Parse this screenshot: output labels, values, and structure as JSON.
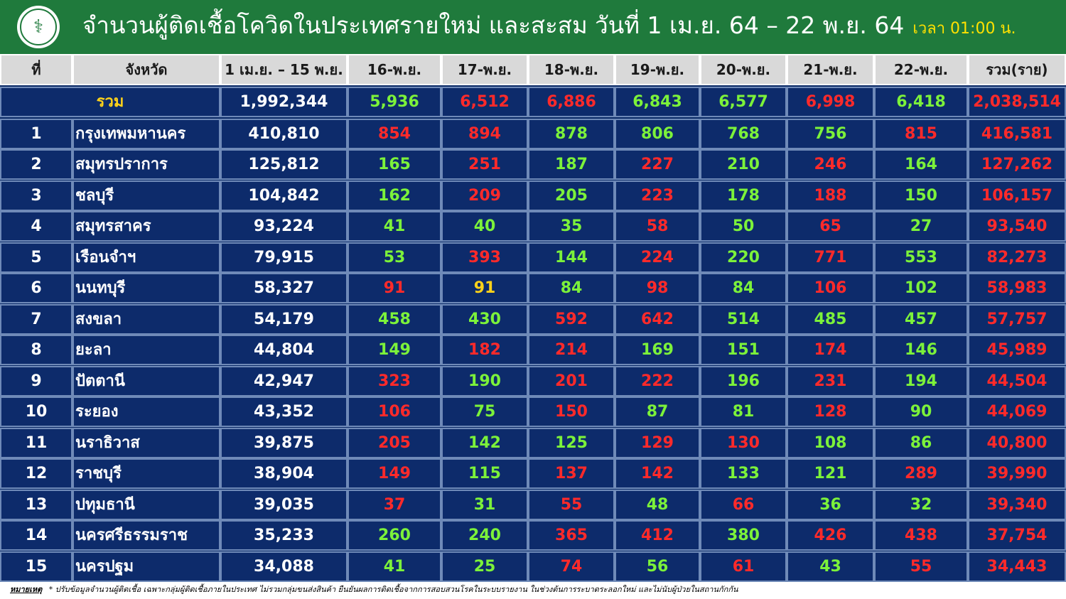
{
  "header": {
    "title": "จำนวนผู้ติดเชื้อโควิดในประเทศรายใหม่ และสะสม วันที่ 1 เม.ย. 64 – 22 พ.ย. 64",
    "time": "เวลา 01:00 น.",
    "logo": "ministry-of-public-health-seal"
  },
  "table": {
    "headers": [
      "ที่",
      "จังหวัด",
      "1 เม.ย. – 15 พ.ย.",
      "16-พ.ย.",
      "17-พ.ย.",
      "18-พ.ย.",
      "19-พ.ย.",
      "20-พ.ย.",
      "21-พ.ย.",
      "22-พ.ย.",
      "รวม(ราย)"
    ],
    "total": {
      "label": "รวม",
      "values": [
        "1,992,344",
        "5,936",
        "6,512",
        "6,886",
        "6,843",
        "6,577",
        "6,998",
        "6,418",
        "2,038,514"
      ],
      "colors": [
        "white",
        "green",
        "red",
        "red",
        "green",
        "green",
        "red",
        "green",
        "red"
      ]
    },
    "rows": [
      {
        "no": "1",
        "province": "กรุงเทพมหานคร",
        "values": [
          "410,810",
          "854",
          "894",
          "878",
          "806",
          "768",
          "756",
          "815",
          "416,581"
        ],
        "colors": [
          "white",
          "red",
          "red",
          "green",
          "green",
          "green",
          "green",
          "red",
          "red"
        ]
      },
      {
        "no": "2",
        "province": "สมุทรปราการ",
        "values": [
          "125,812",
          "165",
          "251",
          "187",
          "227",
          "210",
          "246",
          "164",
          "127,262"
        ],
        "colors": [
          "white",
          "green",
          "red",
          "green",
          "red",
          "green",
          "red",
          "green",
          "red"
        ]
      },
      {
        "no": "3",
        "province": "ชลบุรี",
        "values": [
          "104,842",
          "162",
          "209",
          "205",
          "223",
          "178",
          "188",
          "150",
          "106,157"
        ],
        "colors": [
          "white",
          "green",
          "red",
          "green",
          "red",
          "green",
          "red",
          "green",
          "red"
        ]
      },
      {
        "no": "4",
        "province": "สมุทรสาคร",
        "values": [
          "93,224",
          "41",
          "40",
          "35",
          "58",
          "50",
          "65",
          "27",
          "93,540"
        ],
        "colors": [
          "white",
          "green",
          "green",
          "green",
          "red",
          "green",
          "red",
          "green",
          "red"
        ]
      },
      {
        "no": "5",
        "province": "เรือนจำฯ",
        "values": [
          "79,915",
          "53",
          "393",
          "144",
          "224",
          "220",
          "771",
          "553",
          "82,273"
        ],
        "colors": [
          "white",
          "green",
          "red",
          "green",
          "red",
          "green",
          "red",
          "green",
          "red"
        ]
      },
      {
        "no": "6",
        "province": "นนทบุรี",
        "values": [
          "58,327",
          "91",
          "91",
          "84",
          "98",
          "84",
          "106",
          "102",
          "58,983"
        ],
        "colors": [
          "white",
          "red",
          "yellow",
          "green",
          "red",
          "green",
          "red",
          "green",
          "red"
        ]
      },
      {
        "no": "7",
        "province": "สงขลา",
        "values": [
          "54,179",
          "458",
          "430",
          "592",
          "642",
          "514",
          "485",
          "457",
          "57,757"
        ],
        "colors": [
          "white",
          "green",
          "green",
          "red",
          "red",
          "green",
          "green",
          "green",
          "red"
        ]
      },
      {
        "no": "8",
        "province": "ยะลา",
        "values": [
          "44,804",
          "149",
          "182",
          "214",
          "169",
          "151",
          "174",
          "146",
          "45,989"
        ],
        "colors": [
          "white",
          "green",
          "red",
          "red",
          "green",
          "green",
          "red",
          "green",
          "red"
        ]
      },
      {
        "no": "9",
        "province": "ปัตตานี",
        "values": [
          "42,947",
          "323",
          "190",
          "201",
          "222",
          "196",
          "231",
          "194",
          "44,504"
        ],
        "colors": [
          "white",
          "red",
          "green",
          "red",
          "red",
          "green",
          "red",
          "green",
          "red"
        ]
      },
      {
        "no": "10",
        "province": "ระยอง",
        "values": [
          "43,352",
          "106",
          "75",
          "150",
          "87",
          "81",
          "128",
          "90",
          "44,069"
        ],
        "colors": [
          "white",
          "red",
          "green",
          "red",
          "green",
          "green",
          "red",
          "green",
          "red"
        ]
      },
      {
        "no": "11",
        "province": "นราธิวาส",
        "values": [
          "39,875",
          "205",
          "142",
          "125",
          "129",
          "130",
          "108",
          "86",
          "40,800"
        ],
        "colors": [
          "white",
          "red",
          "green",
          "green",
          "red",
          "red",
          "green",
          "green",
          "red"
        ]
      },
      {
        "no": "12",
        "province": "ราชบุรี",
        "values": [
          "38,904",
          "149",
          "115",
          "137",
          "142",
          "133",
          "121",
          "289",
          "39,990"
        ],
        "colors": [
          "white",
          "red",
          "green",
          "red",
          "red",
          "green",
          "green",
          "red",
          "red"
        ]
      },
      {
        "no": "13",
        "province": "ปทุมธานี",
        "values": [
          "39,035",
          "37",
          "31",
          "55",
          "48",
          "66",
          "36",
          "32",
          "39,340"
        ],
        "colors": [
          "white",
          "red",
          "green",
          "red",
          "green",
          "red",
          "green",
          "green",
          "red"
        ]
      },
      {
        "no": "14",
        "province": "นครศรีธรรมราช",
        "values": [
          "35,233",
          "260",
          "240",
          "365",
          "412",
          "380",
          "426",
          "438",
          "37,754"
        ],
        "colors": [
          "white",
          "green",
          "green",
          "red",
          "red",
          "green",
          "red",
          "red",
          "red"
        ]
      },
      {
        "no": "15",
        "province": "นครปฐม",
        "values": [
          "34,088",
          "41",
          "25",
          "74",
          "56",
          "61",
          "43",
          "55",
          "34,443"
        ],
        "colors": [
          "white",
          "green",
          "green",
          "red",
          "green",
          "red",
          "green",
          "red",
          "red"
        ]
      }
    ]
  },
  "footnote": {
    "label": "หมายเหตุ",
    "text": "* ปรับข้อมูลจำนวนผู้ติดเชื้อ เฉพาะกลุ่มผู้ติดเชื้อภายในประเทศ ไม่รวมกลุ่มขนส่งสินค้า ยืนยันผลการติดเชื้อจากการสอบสวนโรคในระบบรายงาน ในช่วงต้นการระบาดระลอกใหม่ และไม่นับผู้ป่วยในสถานกักกัน"
  },
  "colors": {
    "header_bg": "#1f7a3c",
    "table_bg": "#0d2b6b",
    "green": "#7cf23a",
    "red": "#ff2a2a",
    "yellow": "#ffd21a"
  }
}
